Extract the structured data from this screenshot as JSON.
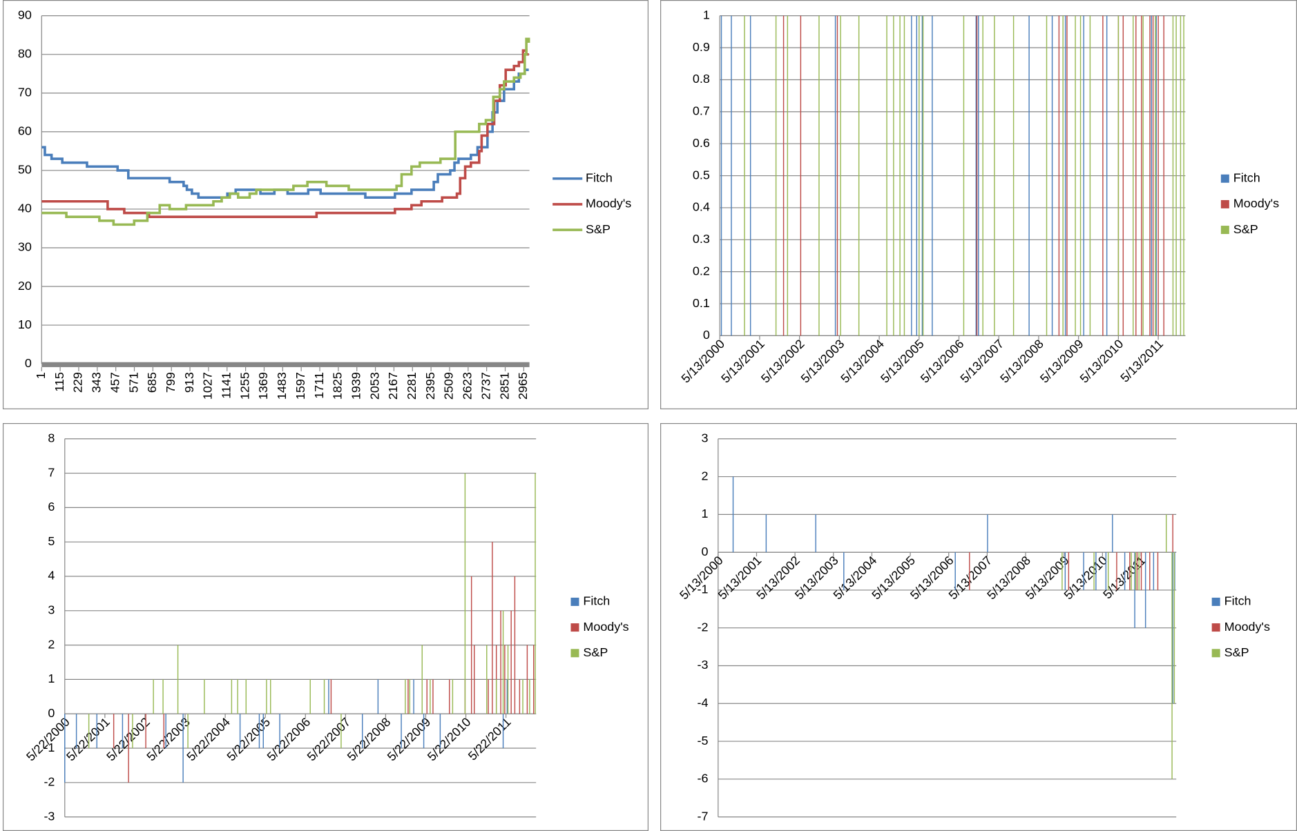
{
  "chart_data": [
    {
      "type": "line",
      "step": true,
      "grid": true,
      "legend": "right",
      "xlim": [
        1,
        3000
      ],
      "xticks": [
        1,
        115,
        229,
        343,
        457,
        571,
        685,
        799,
        913,
        1027,
        1141,
        1255,
        1369,
        1483,
        1597,
        1711,
        1825,
        1939,
        2053,
        2167,
        2281,
        2395,
        2509,
        2623,
        2737,
        2851,
        2965
      ],
      "ylim": [
        0,
        90
      ],
      "yticks": [
        0,
        10,
        20,
        30,
        40,
        50,
        60,
        70,
        80,
        90
      ],
      "series": [
        {
          "name": "Fitch",
          "color": "#4a7ebb",
          "x": [
            1,
            21,
            62,
            128,
            280,
            468,
            534,
            788,
            874,
            894,
            925,
            965,
            1143,
            1194,
            1346,
            1432,
            1513,
            1640,
            1716,
            1991,
            2173,
            2275,
            2412,
            2437,
            2513,
            2539,
            2564,
            2640,
            2681,
            2742,
            2773,
            2803,
            2844,
            2905,
            2935,
            2971,
            2996
          ],
          "values": [
            56,
            54,
            53,
            52,
            51,
            50,
            48,
            47,
            46,
            45,
            44,
            43,
            44,
            45,
            44,
            45,
            44,
            45,
            44,
            43,
            44,
            45,
            47,
            49,
            50,
            52,
            53,
            54,
            56,
            60,
            65,
            68,
            71,
            73,
            75,
            76,
            76
          ]
        },
        {
          "name": "Moody's",
          "color": "#be4b48",
          "x": [
            1,
            407,
            509,
            661,
            1691,
            2173,
            2275,
            2336,
            2463,
            2554,
            2574,
            2605,
            2640,
            2691,
            2706,
            2742,
            2783,
            2818,
            2854,
            2905,
            2935,
            2961,
            2981,
            2996
          ],
          "values": [
            42,
            40,
            39,
            38,
            39,
            40,
            41,
            42,
            43,
            44,
            48,
            51,
            52,
            55,
            59,
            62,
            68,
            72,
            76,
            77,
            78,
            81,
            80,
            80
          ]
        },
        {
          "name": "S&P",
          "color": "#98b954",
          "x": [
            1,
            153,
            356,
            443,
            570,
            651,
            727,
            788,
            889,
            1057,
            1108,
            1158,
            1209,
            1280,
            1321,
            1549,
            1635,
            1752,
            1889,
            2183,
            2214,
            2275,
            2326,
            2453,
            2544,
            2691,
            2732,
            2778,
            2818,
            2844,
            2905,
            2945,
            2971,
            2981,
            2996
          ],
          "values": [
            39,
            38,
            37,
            36,
            37,
            39,
            41,
            40,
            41,
            42,
            43,
            44,
            43,
            44,
            45,
            46,
            47,
            46,
            45,
            46,
            49,
            51,
            52,
            53,
            60,
            62,
            63,
            69,
            71,
            73,
            74,
            75,
            80,
            84,
            83
          ]
        }
      ]
    },
    {
      "type": "bar",
      "grid": true,
      "legend": "right",
      "xlim": [
        2000.36,
        2012.04
      ],
      "xticks": [
        {
          "value": 2000.36,
          "label": "5/13/2000"
        },
        {
          "value": 2001.36,
          "label": "5/13/2001"
        },
        {
          "value": 2002.36,
          "label": "5/13/2002"
        },
        {
          "value": 2003.36,
          "label": "5/13/2003"
        },
        {
          "value": 2004.36,
          "label": "5/13/2004"
        },
        {
          "value": 2005.36,
          "label": "5/13/2005"
        },
        {
          "value": 2006.36,
          "label": "5/13/2006"
        },
        {
          "value": 2007.36,
          "label": "5/13/2007"
        },
        {
          "value": 2008.36,
          "label": "5/13/2008"
        },
        {
          "value": 2009.36,
          "label": "5/13/2009"
        },
        {
          "value": 2010.36,
          "label": "5/13/2010"
        },
        {
          "value": 2011.36,
          "label": "5/13/2011"
        }
      ],
      "ylim": [
        0,
        1
      ],
      "yticks": [
        0,
        0.1,
        0.2,
        0.3,
        0.4,
        0.5,
        0.6,
        0.7,
        0.8,
        0.9,
        1
      ],
      "series": [
        {
          "name": "Fitch",
          "color": "#4a7ebb",
          "x": [
            2000.4,
            2000.65,
            2001.13,
            2003.26,
            2005.17,
            2005.3,
            2005.44,
            2005.69,
            2006.79,
            2006.85,
            2008.12,
            2008.7,
            2009.03,
            2009.49,
            2010.07,
            2011.19,
            2011.31
          ],
          "values": [
            1,
            1,
            1,
            1,
            1,
            1,
            1,
            1,
            1,
            1,
            1,
            1,
            1,
            1,
            1,
            1,
            1
          ]
        },
        {
          "name": "Moody's",
          "color": "#be4b48",
          "x": [
            2001.96,
            2002.39,
            2003.31,
            2006.81,
            2008.87,
            2009.07,
            2009.97,
            2010.36,
            2010.48,
            2010.8,
            2010.94,
            2011.15,
            2011.23,
            2011.36,
            2011.5
          ],
          "values": [
            1,
            1,
            1,
            1,
            1,
            1,
            1,
            1,
            1,
            1,
            1,
            1,
            1,
            1,
            1
          ]
        },
        {
          "name": "S&P",
          "color": "#98b954",
          "x": [
            2000.98,
            2001.77,
            2002.06,
            2002.85,
            2003.39,
            2003.85,
            2004.55,
            2004.72,
            2004.88,
            2004.99,
            2005.36,
            2005.46,
            2006.48,
            2006.96,
            2007.25,
            2007.73,
            2008.56,
            2008.97,
            2009.28,
            2009.41,
            2009.65,
            2010.36,
            2010.73,
            2010.98,
            2011.29,
            2011.73,
            2011.81,
            2011.92,
            2012.0
          ],
          "values": [
            1,
            1,
            1,
            1,
            1,
            1,
            1,
            1,
            1,
            1,
            1,
            1,
            1,
            1,
            1,
            1,
            1,
            1,
            1,
            1,
            1,
            1,
            1,
            1,
            1,
            1,
            1,
            1,
            1
          ]
        }
      ]
    },
    {
      "type": "bar",
      "grid": true,
      "legend": "right",
      "xlim": [
        2000.39,
        2012.14
      ],
      "xticks": [
        {
          "value": 2000.39,
          "label": "5/22/2000"
        },
        {
          "value": 2001.39,
          "label": "5/22/2001"
        },
        {
          "value": 2002.39,
          "label": "5/22/2002"
        },
        {
          "value": 2003.39,
          "label": "5/22/2003"
        },
        {
          "value": 2004.39,
          "label": "5/22/2004"
        },
        {
          "value": 2005.39,
          "label": "5/22/2005"
        },
        {
          "value": 2006.39,
          "label": "5/22/2006"
        },
        {
          "value": 2007.39,
          "label": "5/22/2007"
        },
        {
          "value": 2008.39,
          "label": "5/22/2008"
        },
        {
          "value": 2009.39,
          "label": "5/22/2009"
        },
        {
          "value": 2010.39,
          "label": "5/22/2010"
        },
        {
          "value": 2011.39,
          "label": "5/22/2011"
        }
      ],
      "ylim": [
        -3,
        8
      ],
      "yticks": [
        -3,
        -2,
        -1,
        0,
        1,
        2,
        3,
        4,
        5,
        6,
        7,
        8
      ],
      "series": [
        {
          "name": "Fitch",
          "color": "#4a7ebb",
          "x": [
            2000.39,
            2000.68,
            2001.19,
            2001.83,
            2002.91,
            2003.34,
            2004.76,
            2005.24,
            2005.34,
            2005.75,
            2006.97,
            2007.81,
            2008.2,
            2008.78,
            2009.09,
            2009.34,
            2009.75,
            2011.32,
            2011.42
          ],
          "values": [
            -2,
            -1,
            -1,
            -1,
            -1,
            -2,
            -1,
            -1,
            -1,
            -1,
            1,
            -1,
            1,
            -1,
            1,
            -1,
            -1,
            -1,
            1
          ]
        },
        {
          "name": "Moody's",
          "color": "#be4b48",
          "x": [
            2001.61,
            2001.98,
            2002.41,
            2002.86,
            2007.03,
            2008.95,
            2009.42,
            2009.57,
            2009.98,
            2010.37,
            2010.53,
            2010.6,
            2010.95,
            2011.05,
            2011.15,
            2011.26,
            2011.36,
            2011.52,
            2011.61,
            2011.73,
            2011.92,
            2012.08
          ],
          "values": [
            -1,
            -2,
            -1,
            -1,
            1,
            1,
            1,
            1,
            1,
            1,
            4,
            2,
            1,
            5,
            2,
            3,
            2,
            3,
            4,
            1,
            2,
            2
          ]
        },
        {
          "name": "S&P",
          "color": "#98b954",
          "x": [
            2000.99,
            2002.08,
            2002.6,
            2002.84,
            2003.21,
            2003.46,
            2003.87,
            2004.55,
            2004.7,
            2004.91,
            2005.42,
            2005.52,
            2006.51,
            2006.86,
            2007.28,
            2008.88,
            2008.99,
            2009.3,
            2009.5,
            2010.06,
            2010.37,
            2010.91,
            2011.15,
            2011.32,
            2011.44,
            2011.81,
            2011.98,
            2012.12
          ],
          "values": [
            -1,
            -1,
            1,
            1,
            2,
            -1,
            1,
            1,
            1,
            1,
            1,
            1,
            1,
            1,
            -1,
            1,
            1,
            2,
            1,
            1,
            7,
            2,
            1,
            3,
            2,
            1,
            1,
            7
          ]
        }
      ]
    },
    {
      "type": "bar",
      "grid": true,
      "legend": "right",
      "xlim": [
        2000.36,
        2012.28
      ],
      "xticks": [
        {
          "value": 2000.36,
          "label": "5/13/2000"
        },
        {
          "value": 2001.36,
          "label": "5/13/2001"
        },
        {
          "value": 2002.36,
          "label": "5/13/2002"
        },
        {
          "value": 2003.36,
          "label": "5/13/2003"
        },
        {
          "value": 2004.36,
          "label": "5/13/2004"
        },
        {
          "value": 2005.36,
          "label": "5/13/2005"
        },
        {
          "value": 2006.36,
          "label": "5/13/2006"
        },
        {
          "value": 2007.36,
          "label": "5/13/2007"
        },
        {
          "value": 2008.36,
          "label": "5/13/2008"
        },
        {
          "value": 2009.36,
          "label": "5/13/2009"
        },
        {
          "value": 2010.36,
          "label": "5/13/2010"
        },
        {
          "value": 2011.36,
          "label": "5/13/2011"
        }
      ],
      "ylim": [
        -7,
        3
      ],
      "yticks": [
        -7,
        -6,
        -5,
        -4,
        -3,
        -2,
        -1,
        0,
        1,
        2,
        3
      ],
      "series": [
        {
          "name": "Fitch",
          "color": "#4a7ebb",
          "x": [
            2000.75,
            2001.61,
            2002.9,
            2003.63,
            2006.53,
            2007.37,
            2009.39,
            2009.87,
            2010.19,
            2010.45,
            2010.62,
            2010.94,
            2011.2,
            2011.48,
            2011.69,
            2012.19,
            2012.24
          ],
          "values": [
            2,
            1,
            1,
            -1,
            -1,
            1,
            -1,
            -1,
            -1,
            -1,
            1,
            -1,
            -2,
            -2,
            -1,
            -4,
            -1
          ]
        },
        {
          "name": "Moody's",
          "color": "#be4b48",
          "x": [
            2006.9,
            2009.48,
            2010.73,
            2011.07,
            2011.26,
            2011.37,
            2011.59,
            2011.8,
            2012.19
          ],
          "values": [
            -1,
            -1,
            -1,
            -1,
            -1,
            -1,
            -1,
            -1,
            1
          ]
        },
        {
          "name": "S&P",
          "color": "#98b954",
          "x": [
            2009.31,
            2010.14,
            2010.51,
            2011.11,
            2011.22,
            2011.31,
            2012.02,
            2012.17,
            2012.23
          ],
          "values": [
            -1,
            -1,
            -1,
            -1,
            -1,
            -1,
            1,
            -6,
            -4
          ]
        }
      ]
    }
  ]
}
